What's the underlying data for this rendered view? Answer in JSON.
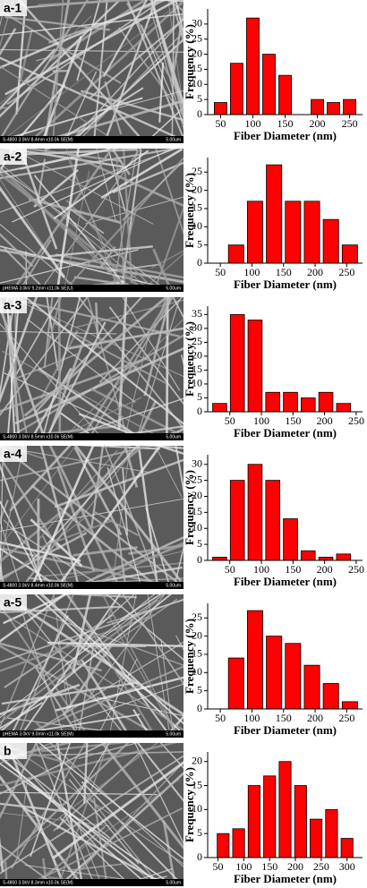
{
  "panels": [
    {
      "label": "a-1",
      "image_info": "S-4800 3.0kV 8.4mm x10.0k SE(M)",
      "image_scale": "5.00um"
    },
    {
      "label": "a-2",
      "image_info": "pHEMA 3.0kV 9.2mm x11.0k SE(U)",
      "image_scale": "5.00um"
    },
    {
      "label": "a-3",
      "image_info": "S-4800 3.0kV 8.5mm x10.0k SE(M)",
      "image_scale": "5.00um"
    },
    {
      "label": "a-4",
      "image_info": "S-4800 3.0kV 8.4mm x10.0k SE(M)",
      "image_scale": "5.00um"
    },
    {
      "label": "a-5",
      "image_info": "pHEMA 3.0kV 9.0mm x11.0k SE(M)",
      "image_scale": "5.00um"
    },
    {
      "label": "b",
      "image_info": "S-4800 3.0kV 8.3mm x10.0k SE(M)",
      "image_scale": "5.00um"
    }
  ],
  "chart_data": [
    {
      "type": "histogram",
      "xlabel": "Fiber Diameter (nm)",
      "ylabel": "Frequency (%)",
      "color": "#ff0000",
      "bins": [
        37.5,
        62.5,
        87.5,
        112.5,
        137.5,
        162.5,
        187.5,
        212.5,
        237.5,
        262.5
      ],
      "values": [
        4,
        17,
        32,
        20,
        13,
        0,
        5,
        4,
        5
      ],
      "xlim": [
        30,
        270
      ],
      "ylim": [
        0,
        35
      ],
      "xticks": [
        50,
        100,
        150,
        200,
        250
      ],
      "yticks": [
        0,
        5,
        10,
        15,
        20,
        25,
        30
      ]
    },
    {
      "type": "histogram",
      "xlabel": "Fiber Diameter (nm)",
      "ylabel": "Frequency (%)",
      "color": "#ff0000",
      "bins": [
        60,
        90,
        120,
        150,
        180,
        210,
        240,
        270
      ],
      "values": [
        5,
        17,
        27,
        17,
        17,
        12,
        5
      ],
      "xlim": [
        30,
        275
      ],
      "ylim": [
        0,
        29
      ],
      "xticks": [
        50,
        100,
        150,
        200,
        250
      ],
      "yticks": [
        0,
        5,
        10,
        15,
        20,
        25
      ]
    },
    {
      "type": "histogram",
      "xlabel": "Fiber Diameter (nm)",
      "ylabel": "Frequency (%)",
      "color": "#ff0000",
      "bins": [
        20,
        48,
        76,
        104,
        132,
        160,
        188,
        216,
        244
      ],
      "values": [
        3,
        35,
        33,
        7,
        7,
        5,
        7,
        3
      ],
      "xlim": [
        15,
        260
      ],
      "ylim": [
        0,
        38
      ],
      "xticks": [
        50,
        100,
        150,
        200,
        250
      ],
      "yticks": [
        0,
        5,
        10,
        15,
        20,
        25,
        30,
        35
      ]
    },
    {
      "type": "histogram",
      "xlabel": "Fiber Diameter (nm)",
      "ylabel": "Frequency (%)",
      "color": "#ff0000",
      "bins": [
        20,
        48,
        76,
        104,
        132,
        160,
        188,
        216,
        244
      ],
      "values": [
        1,
        25,
        30,
        25,
        13,
        3,
        1,
        2
      ],
      "xlim": [
        15,
        260
      ],
      "ylim": [
        0,
        33
      ],
      "xticks": [
        50,
        100,
        150,
        200,
        250
      ],
      "yticks": [
        0,
        5,
        10,
        15,
        20,
        25,
        30
      ]
    },
    {
      "type": "histogram",
      "xlabel": "Fiber Diameter (nm)",
      "ylabel": "Frequency (%)",
      "color": "#ff0000",
      "bins": [
        60,
        90,
        120,
        150,
        180,
        210,
        240,
        270
      ],
      "values": [
        14,
        27,
        20,
        18,
        12,
        7,
        2
      ],
      "xlim": [
        30,
        275
      ],
      "ylim": [
        0,
        29
      ],
      "xticks": [
        50,
        100,
        150,
        200,
        250
      ],
      "yticks": [
        0,
        5,
        10,
        15,
        20,
        25
      ]
    },
    {
      "type": "histogram",
      "xlabel": "Fiber Diameter (nm)",
      "ylabel": "Frequency (%)",
      "color": "#ff0000",
      "bins": [
        45,
        75,
        105,
        135,
        165,
        195,
        225,
        255,
        285,
        315
      ],
      "values": [
        5,
        6,
        15,
        17,
        20,
        15,
        8,
        10,
        4
      ],
      "xlim": [
        30,
        330
      ],
      "ylim": [
        0,
        22
      ],
      "xticks": [
        50,
        100,
        150,
        200,
        250,
        300
      ],
      "yticks": [
        0,
        5,
        10,
        15,
        20
      ]
    }
  ]
}
